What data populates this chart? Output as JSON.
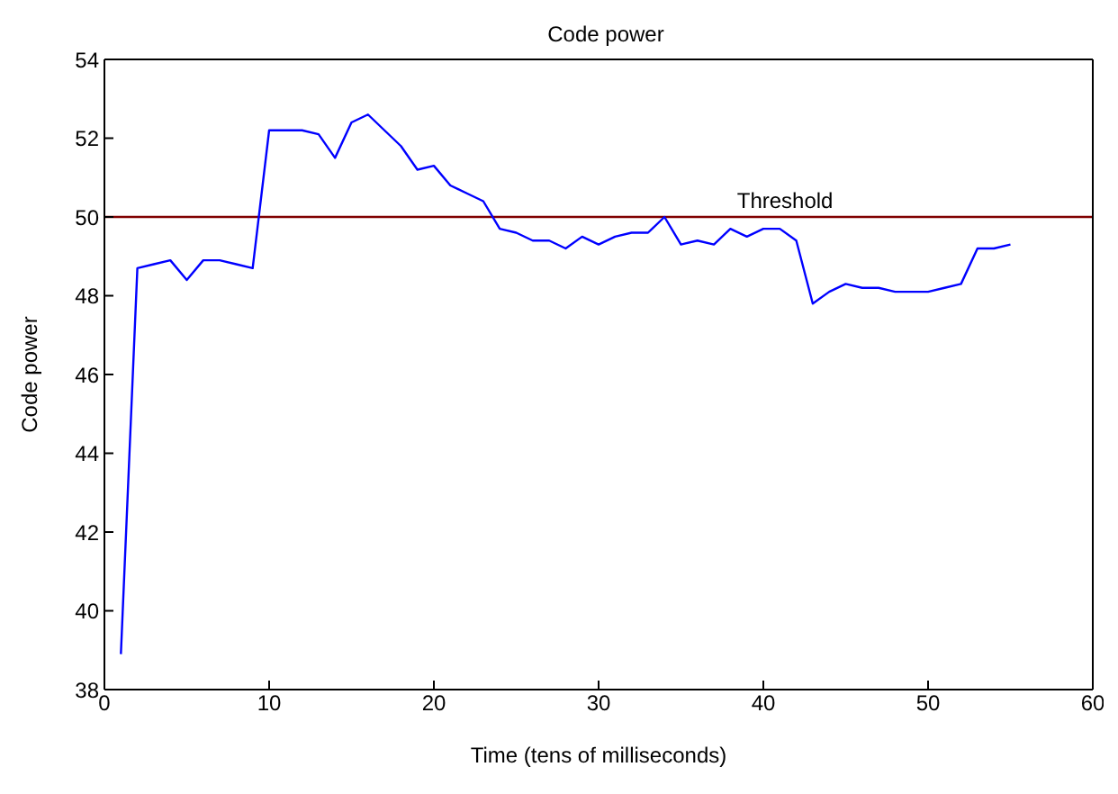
{
  "chart_data": {
    "type": "line",
    "title": "Code power",
    "xlabel": "Time (tens of milliseconds)",
    "ylabel": "Code power",
    "x": [
      1,
      2,
      3,
      4,
      5,
      6,
      7,
      8,
      9,
      10,
      11,
      12,
      13,
      14,
      15,
      16,
      17,
      18,
      19,
      20,
      21,
      22,
      23,
      24,
      25,
      26,
      27,
      28,
      29,
      30,
      31,
      32,
      33,
      34,
      35,
      36,
      37,
      38,
      39,
      40,
      41,
      42,
      43,
      44,
      45,
      46,
      47,
      48,
      49,
      50,
      51,
      52,
      53,
      54,
      55
    ],
    "series": [
      {
        "color": "#0000ff",
        "values": [
          38.9,
          48.7,
          48.8,
          48.9,
          48.4,
          48.9,
          48.9,
          48.8,
          48.7,
          52.2,
          52.2,
          52.2,
          52.1,
          51.5,
          52.4,
          52.6,
          52.2,
          51.8,
          51.2,
          51.3,
          50.8,
          50.6,
          50.4,
          49.7,
          49.6,
          49.4,
          49.4,
          49.2,
          49.5,
          49.3,
          49.5,
          49.6,
          49.6,
          50.0,
          49.3,
          49.4,
          49.3,
          49.7,
          49.5,
          49.7,
          49.7,
          49.4,
          47.8,
          48.1,
          48.3,
          48.2,
          48.2,
          48.1,
          48.1,
          48.1,
          48.2,
          48.3,
          49.2,
          49.2,
          49.3
        ]
      }
    ],
    "xlim": [
      0,
      60
    ],
    "xticks": [
      0,
      10,
      20,
      30,
      40,
      50,
      60
    ],
    "ylim": [
      38,
      54
    ],
    "yticks": [
      38,
      40,
      42,
      44,
      46,
      48,
      50,
      52,
      54
    ],
    "ref_lines": [
      {
        "axis": "y",
        "value": 50,
        "label": "Threshold",
        "color": "#800000"
      }
    ],
    "grid": false,
    "legend": false,
    "marker": "none",
    "line_style": "solid"
  }
}
